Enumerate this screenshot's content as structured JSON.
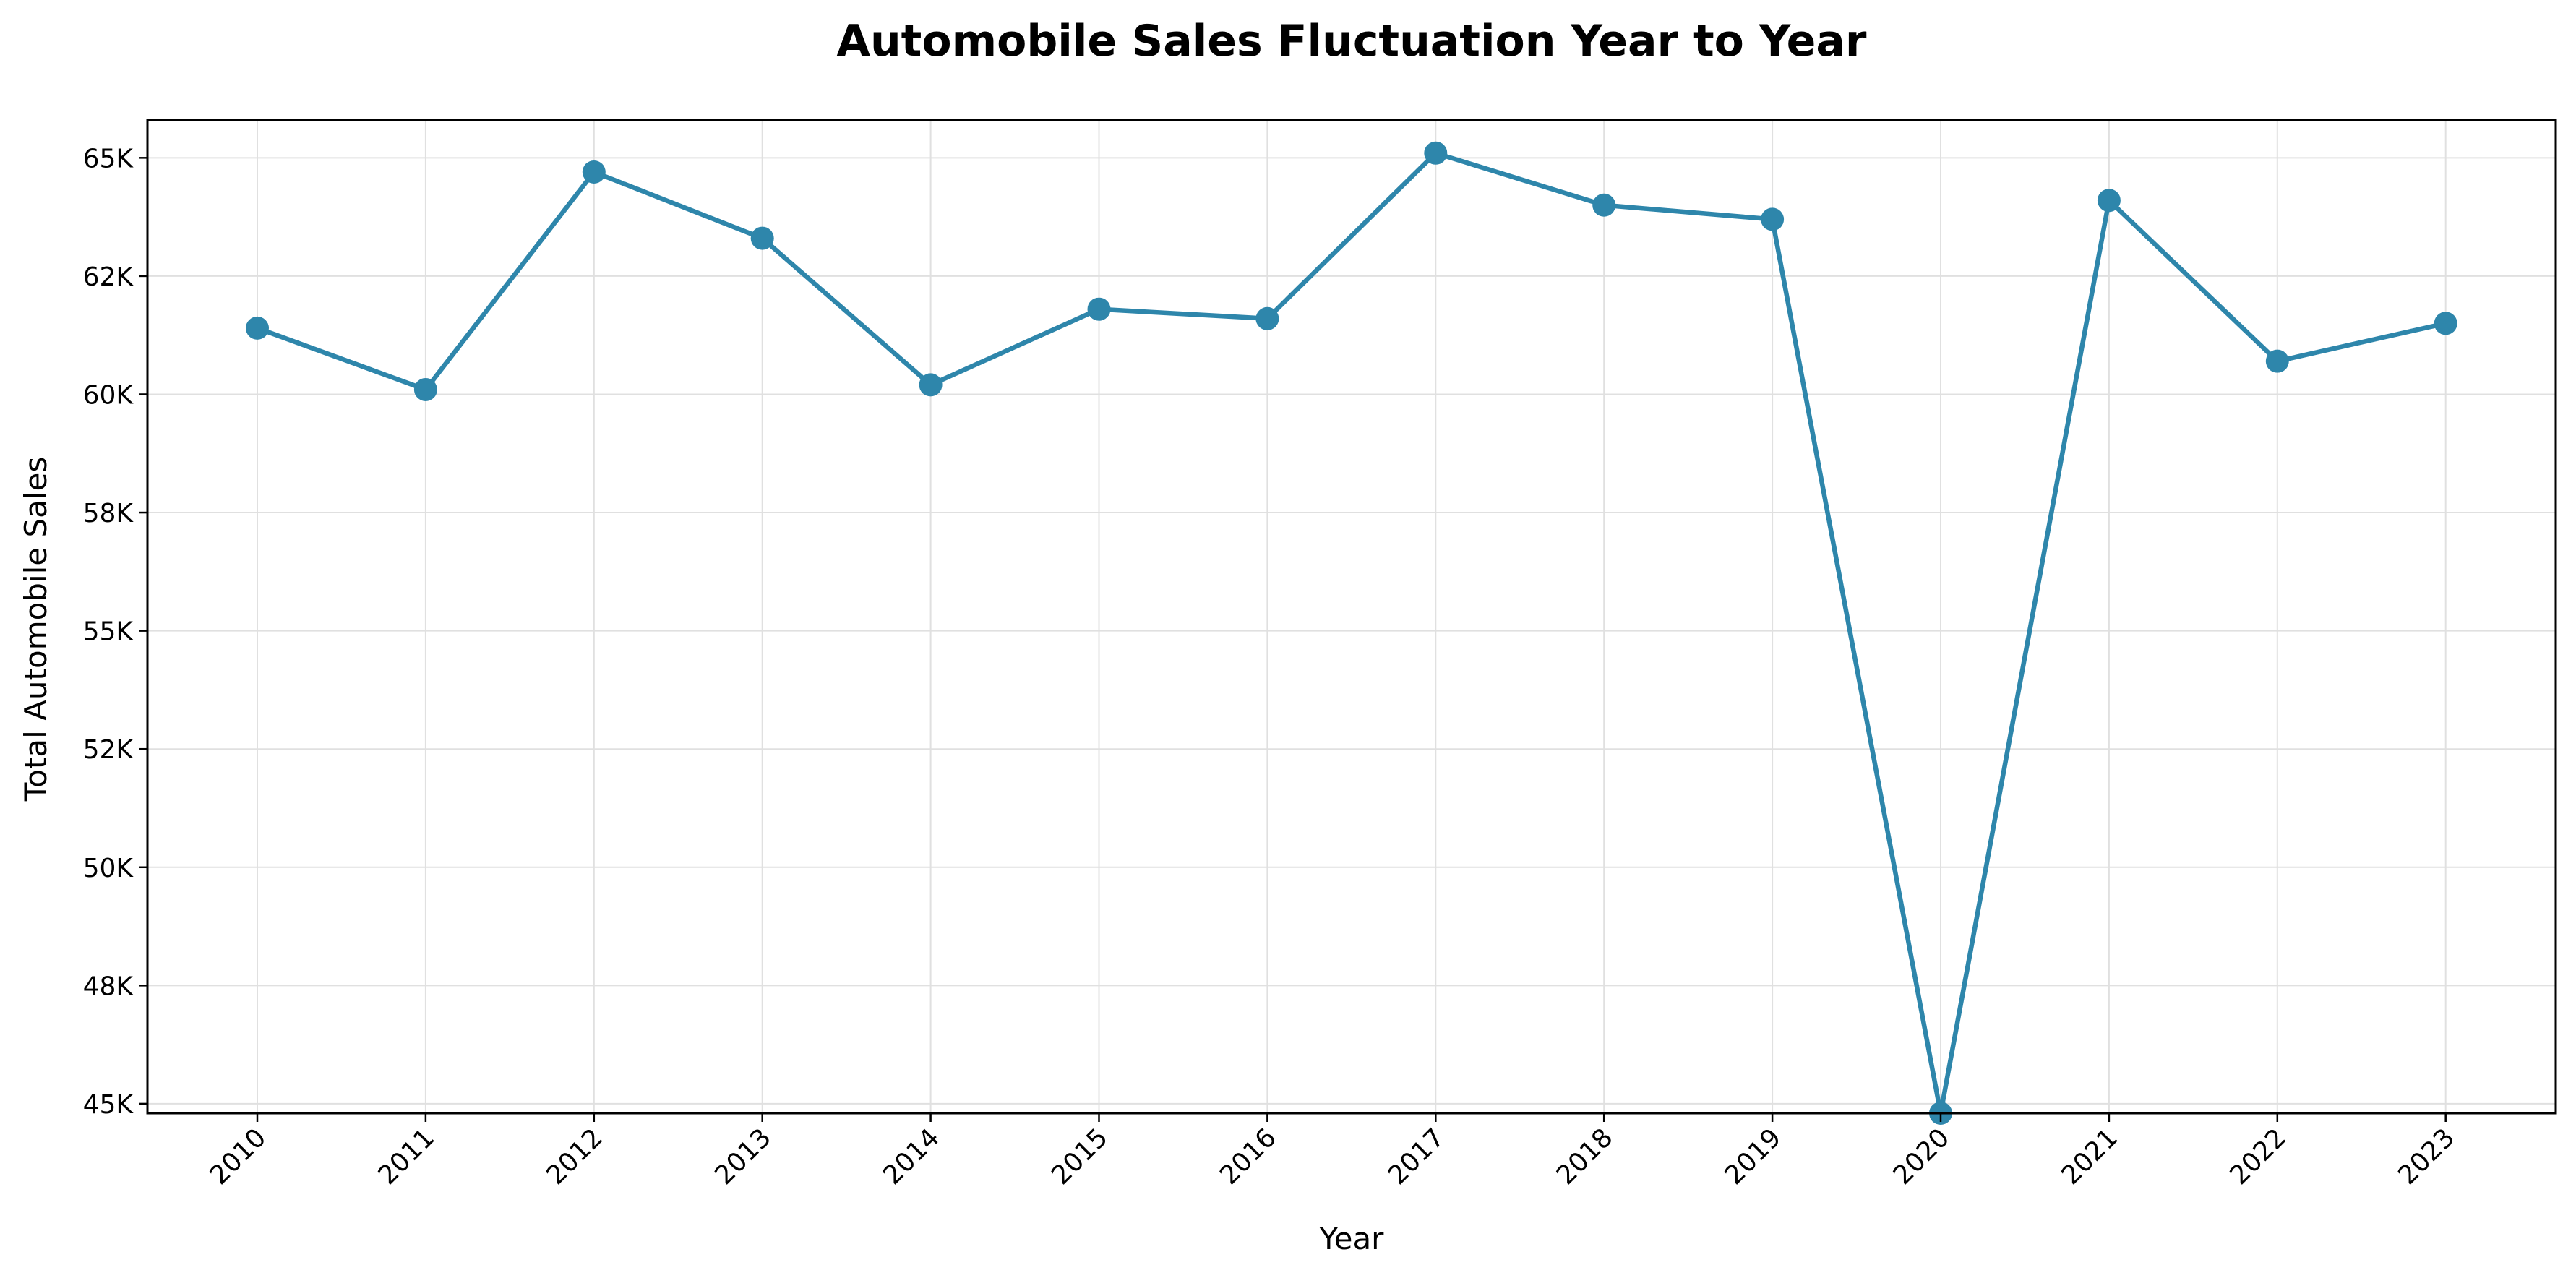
{
  "chart_data": {
    "type": "line",
    "title": "Automobile Sales Fluctuation Year to Year",
    "xlabel": "Year",
    "ylabel": "Total Automobile Sales",
    "categories": [
      "2010",
      "2011",
      "2012",
      "2013",
      "2014",
      "2015",
      "2016",
      "2017",
      "2018",
      "2019",
      "2020",
      "2021",
      "2022",
      "2023"
    ],
    "series": [
      {
        "values": [
          61400,
          60100,
          64700,
          63300,
          60200,
          61800,
          61600,
          65100,
          64000,
          63700,
          44800,
          64100,
          60700,
          61500
        ]
      }
    ],
    "ylim": [
      44800,
      65800
    ],
    "yticks": [
      45000,
      47500,
      50000,
      52500,
      55000,
      57500,
      60000,
      62500,
      65000
    ],
    "ytick_labels": [
      "45K",
      "48K",
      "50K",
      "52K",
      "55K",
      "58K",
      "60K",
      "62K",
      "65K"
    ],
    "grid": true,
    "legend": "none",
    "line_color": "#2e86ab"
  }
}
